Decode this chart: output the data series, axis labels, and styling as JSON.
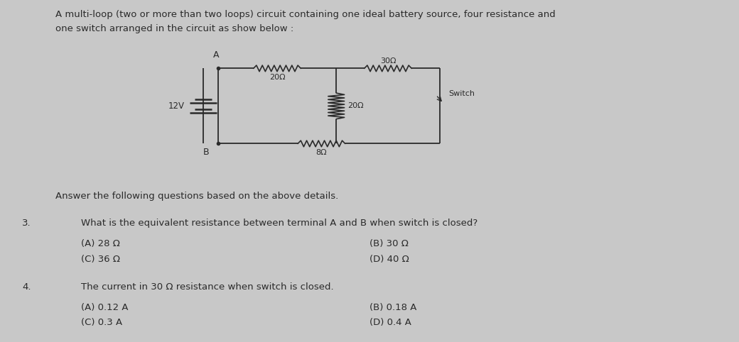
{
  "bg_color": "#c8c8c8",
  "title_line1": "A multi-loop (two or more than two loops) circuit containing one ideal battery source, four resistance and",
  "title_line2": "one switch arranged in the circuit as show below :",
  "answer_text": "Answer the following questions based on the above details.",
  "q3_num": "3.",
  "q3_text": "What is the equivalent resistance between terminal A and B when switch is closed?",
  "q3_A": "(A) 28 Ω",
  "q3_B": "(B) 30 Ω",
  "q3_C": "(C) 36 Ω",
  "q3_D": "(D) 40 Ω",
  "q4_num": "4.",
  "q4_text": "The current in 30 Ω resistance when switch is closed.",
  "q4_A": "(A) 0.12 A",
  "q4_B": "(B) 0.18 A",
  "q4_C": "(C) 0.3 A",
  "q4_D": "(D) 0.4 A",
  "text_color": "#2a2a2a",
  "circuit_color": "#2a2a2a",
  "label_20_top": "20Ω",
  "label_30": "30Ω",
  "label_20_mid": "20Ω",
  "label_8": "8Ω",
  "label_12v": "12V",
  "label_A": "A",
  "label_B": "B",
  "label_switch": "Switch"
}
